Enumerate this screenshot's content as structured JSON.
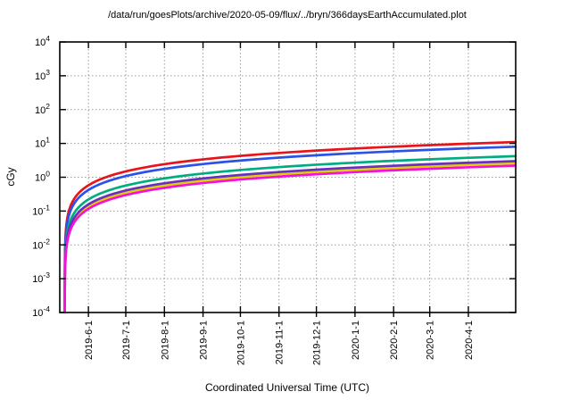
{
  "window": {
    "background": "#ffffff",
    "plot_kind": "gnuplot-style line plot"
  },
  "chart_data": {
    "type": "line",
    "title": "/data/run/goesPlots/archive/2020-05-09/flux/../bryn/366daysEarthAccumulated.plot",
    "x_axis": {
      "label": "Coordinated Universal Time (UTC)",
      "scale": "time-linear",
      "range_dates": [
        "2019-05-09",
        "2020-05-09"
      ],
      "range_days": [
        0,
        366
      ],
      "tick_labels": [
        "2019-6-1",
        "2019-7-1",
        "2019-8-1",
        "2019-9-1",
        "2019-10-1",
        "2019-11-1",
        "2019-12-1",
        "2020-1-1",
        "2020-2-1",
        "2020-3-1",
        "2020-4-1"
      ],
      "tick_days": [
        23,
        53,
        84,
        115,
        145,
        176,
        206,
        237,
        268,
        297,
        328
      ],
      "grid": true
    },
    "y_axis": {
      "label": "cGy",
      "scale": "log10",
      "range": [
        0.0001,
        10000
      ],
      "tick_exponents": [
        4,
        3,
        2,
        1,
        0,
        -1,
        -2,
        -3,
        -4
      ],
      "tick_base": "10",
      "grid": true
    },
    "legend": "none",
    "accumulation_model": "dose accumulates approximately linearly in time starting near day 4; curves rise steeply from below 1e-4 cGy at the left edge",
    "accumulation_start_day": 4,
    "sample_days": [
      23,
      53,
      84,
      115,
      145,
      176,
      206,
      237,
      268,
      297,
      328,
      366
    ],
    "sample_dates": [
      "2019-6-1",
      "2019-7-1",
      "2019-8-1",
      "2019-9-1",
      "2019-10-1",
      "2019-11-1",
      "2019-12-1",
      "2020-1-1",
      "2020-2-1",
      "2020-3-1",
      "2020-4-1",
      "2020-5-9"
    ],
    "series": [
      {
        "name": "red",
        "color": "#e8141c",
        "end_value_cGy": 11.0,
        "values_at_ticks": [
          0.58,
          1.49,
          2.43,
          3.37,
          4.28,
          5.23,
          6.14,
          7.08,
          8.02,
          8.9,
          9.85,
          11.0
        ]
      },
      {
        "name": "blue",
        "color": "#2a52e8",
        "end_value_cGy": 8.0,
        "values_at_ticks": [
          0.42,
          1.08,
          1.77,
          2.45,
          3.12,
          3.8,
          4.46,
          5.15,
          5.83,
          6.48,
          7.16,
          8.0
        ]
      },
      {
        "name": "green",
        "color": "#00ad7e",
        "end_value_cGy": 4.2,
        "values_at_ticks": [
          0.22,
          0.57,
          0.93,
          1.29,
          1.64,
          2.0,
          2.34,
          2.7,
          3.06,
          3.4,
          3.76,
          4.2
        ]
      },
      {
        "name": "yellow",
        "color": "#ddd200",
        "end_value_cGy": 2.6,
        "values_at_ticks": [
          0.14,
          0.35,
          0.57,
          0.8,
          1.01,
          1.24,
          1.45,
          1.67,
          1.9,
          2.1,
          2.33,
          2.6
        ]
      },
      {
        "name": "purple",
        "color": "#6a2fc0",
        "end_value_cGy": 3.0,
        "values_at_ticks": [
          0.16,
          0.41,
          0.66,
          0.92,
          1.17,
          1.43,
          1.67,
          1.93,
          2.19,
          2.43,
          2.69,
          3.0
        ]
      },
      {
        "name": "magenta",
        "color": "#f611d8",
        "end_value_cGy": 2.2,
        "values_at_ticks": [
          0.12,
          0.3,
          0.49,
          0.67,
          0.86,
          1.05,
          1.23,
          1.42,
          1.6,
          1.78,
          1.97,
          2.2
        ]
      }
    ],
    "grid_color": "#9a9a9a",
    "axis_color": "#000000"
  }
}
